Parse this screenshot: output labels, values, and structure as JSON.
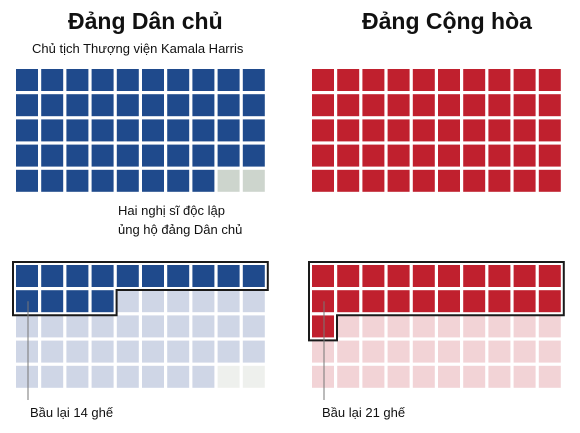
{
  "chart_data": {
    "type": "waffle",
    "panels": [
      {
        "title": "Đảng Dân chủ",
        "subtitle": "Chủ tịch Thượng viện Kamala Harris",
        "annotation_lines": [
          "Hai nghị sĩ độc lập",
          "ủng hộ đảng Dân chủ"
        ],
        "total_seats": 50,
        "party_seats": 48,
        "allied_seats": 2,
        "up_for_election_label": "Bầu lại 14 ghế",
        "up_for_election": 14
      },
      {
        "title": "Đảng Cộng hòa",
        "total_seats": 50,
        "party_seats": 50,
        "allied_seats": 0,
        "up_for_election_label": "Bầu lại 21 ghế",
        "up_for_election": 21
      }
    ]
  },
  "colors": {
    "democrat": "#1f4a8c",
    "democrat_faded": "#cfd6e6",
    "republican": "#c0202e",
    "republican_faded": "#f2d3d6",
    "independent": "#cdd5cd",
    "independent_faded": "#eef0ed",
    "outline": "#1a1a1a"
  }
}
